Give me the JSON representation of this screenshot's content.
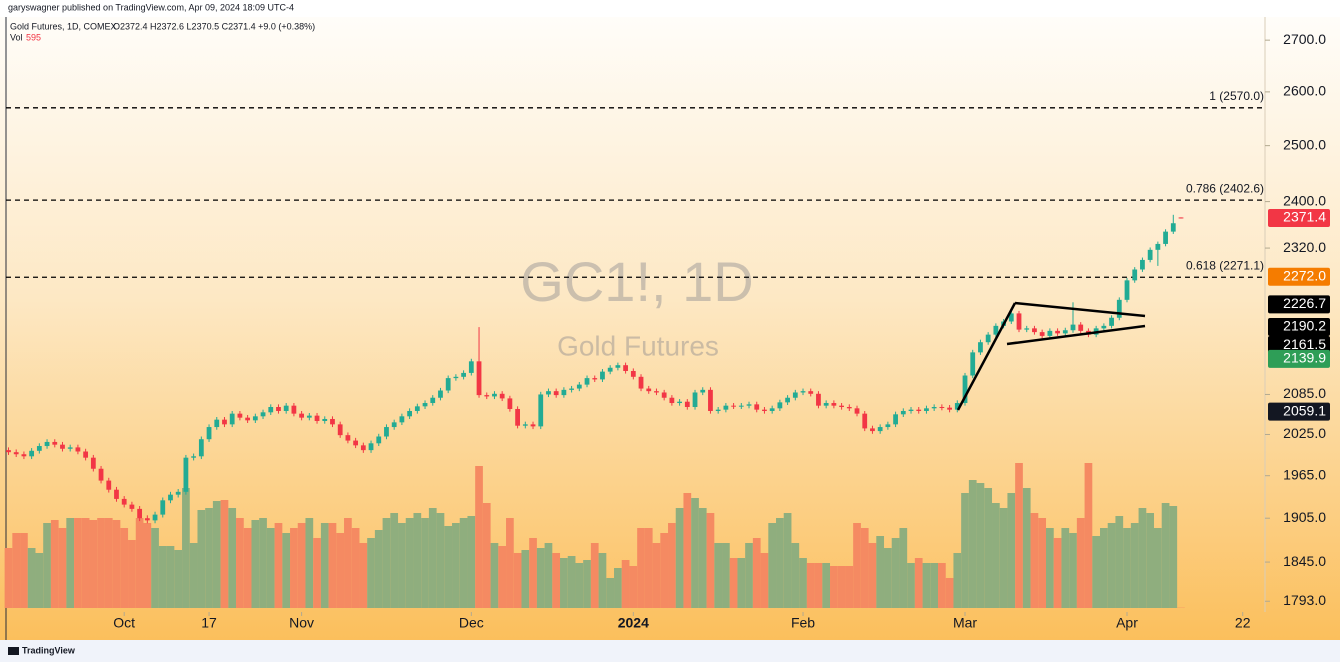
{
  "header": {
    "publisher": "garyswagner published on TradingView.com, Apr 09, 2024 18:09 UTC-4"
  },
  "legend": {
    "symbol": "Gold Futures, 1D, COMEX",
    "ohlc": "O2372.4 H2372.6 L2370.5 C2371.4 +9.0 (+0.38%)",
    "volume_label": "Vol",
    "volume_value": "595"
  },
  "watermark": {
    "symbol": "GC1!, 1D",
    "name": "Gold Futures"
  },
  "footer": {
    "brand": "TradingView"
  },
  "chart_data": {
    "type": "candlestick",
    "log_scale": true,
    "grid": false,
    "up_color": "#22ab94",
    "down_color": "#f23645",
    "volume_up_color": "#8fae7e",
    "volume_down_color": "#f58a62",
    "xlim": [
      -1.1,
      162.5
    ],
    "xticks": [
      {
        "value": 15,
        "label": "Oct"
      },
      {
        "value": 26,
        "label": "17"
      },
      {
        "value": 38,
        "label": "Nov"
      },
      {
        "value": 60,
        "label": "Dec"
      },
      {
        "value": 81,
        "label": "2024"
      },
      {
        "value": 103,
        "label": "Feb"
      },
      {
        "value": 124,
        "label": "Mar"
      },
      {
        "value": 145,
        "label": "Apr"
      },
      {
        "value": 160,
        "label": "22"
      }
    ],
    "ylim": [
      1779,
      2746
    ],
    "yticks": [
      {
        "value": 1793,
        "label": "1793.0"
      },
      {
        "value": 1845,
        "label": "1845.0"
      },
      {
        "value": 1905,
        "label": "1905.0"
      },
      {
        "value": 1965,
        "label": "1965.0"
      },
      {
        "value": 2025,
        "label": "2025.0"
      },
      {
        "value": 2085,
        "label": "2085.0"
      },
      {
        "value": 2320,
        "label": "2320.0"
      },
      {
        "value": 2400,
        "label": "2400.0"
      },
      {
        "value": 2500,
        "label": "2500.0"
      },
      {
        "value": 2600,
        "label": "2600.0"
      },
      {
        "value": 2700,
        "label": "2700.0"
      }
    ],
    "vlim": [
      0,
      400000
    ],
    "open": [
      2002,
      1999,
      1996,
      1993,
      2001,
      2008,
      2014,
      2010,
      2004,
      2006,
      2000,
      1991,
      1975,
      1958,
      1945,
      1932,
      1924,
      1918,
      1905,
      1902,
      1910,
      1930,
      1938,
      1942,
      1991,
      1993,
      2018,
      2036,
      2047,
      2040,
      2056,
      2050,
      2046,
      2052,
      2058,
      2066,
      2060,
      2068,
      2056,
      2050,
      2053,
      2045,
      2048,
      2040,
      2024,
      2016,
      2009,
      2002,
      2012,
      2022,
      2036,
      2043,
      2052,
      2060,
      2067,
      2072,
      2080,
      2091,
      2110,
      2112,
      2118,
      2136,
      2084,
      2082,
      2086,
      2079,
      2063,
      2038,
      2040,
      2037,
      2085,
      2090,
      2084,
      2092,
      2094,
      2100,
      2110,
      2108,
      2120,
      2126,
      2130,
      2121,
      2112,
      2094,
      2090,
      2088,
      2080,
      2072,
      2074,
      2066,
      2088,
      2092,
      2060,
      2062,
      2068,
      2067,
      2068,
      2070,
      2062,
      2060,
      2064,
      2073,
      2080,
      2088,
      2090,
      2086,
      2068,
      2072,
      2068,
      2066,
      2064,
      2056,
      2034,
      2030,
      2036,
      2040,
      2055,
      2060,
      2062,
      2060,
      2064,
      2066,
      2065,
      2062,
      2072,
      2114,
      2150,
      2166,
      2178,
      2192,
      2199,
      2212,
      2186,
      2188,
      2182,
      2176,
      2184,
      2180,
      2185,
      2194,
      2184,
      2178,
      2188,
      2192,
      2205,
      2234,
      2266,
      2284,
      2300,
      2317,
      2327,
      2348,
      2372.4
    ],
    "high": [
      2006,
      2003,
      2000,
      2005,
      2012,
      2018,
      2018,
      2014,
      2010,
      2010,
      2004,
      1995,
      1979,
      1962,
      1949,
      1936,
      1928,
      1922,
      1909,
      1914,
      1934,
      1942,
      1946,
      1995,
      1997,
      2022,
      2040,
      2051,
      2051,
      2060,
      2060,
      2054,
      2056,
      2062,
      2070,
      2070,
      2072,
      2072,
      2060,
      2057,
      2057,
      2052,
      2052,
      2044,
      2028,
      2020,
      2013,
      2016,
      2026,
      2040,
      2047,
      2056,
      2064,
      2071,
      2076,
      2084,
      2095,
      2114,
      2116,
      2122,
      2140,
      2190,
      2088,
      2090,
      2090,
      2083,
      2067,
      2044,
      2044,
      2089,
      2094,
      2094,
      2096,
      2098,
      2104,
      2114,
      2114,
      2124,
      2130,
      2134,
      2134,
      2125,
      2116,
      2098,
      2094,
      2092,
      2084,
      2078,
      2078,
      2092,
      2096,
      2096,
      2066,
      2072,
      2072,
      2072,
      2074,
      2074,
      2066,
      2068,
      2077,
      2084,
      2092,
      2094,
      2094,
      2090,
      2076,
      2076,
      2072,
      2070,
      2068,
      2060,
      2038,
      2040,
      2044,
      2059,
      2064,
      2066,
      2066,
      2068,
      2070,
      2070,
      2069,
      2076,
      2118,
      2154,
      2170,
      2182,
      2196,
      2203,
      2216,
      2216,
      2192,
      2192,
      2186,
      2188,
      2188,
      2189,
      2230,
      2198,
      2188,
      2192,
      2196,
      2209,
      2238,
      2270,
      2288,
      2304,
      2321,
      2331,
      2352,
      2377,
      2372.6
    ],
    "low": [
      1995,
      1992,
      1989,
      1989,
      1997,
      2004,
      2006,
      2000,
      2000,
      1996,
      1987,
      1971,
      1954,
      1941,
      1928,
      1920,
      1914,
      1901,
      1898,
      1898,
      1906,
      1926,
      1934,
      1938,
      1987,
      1989,
      2014,
      2032,
      2036,
      2036,
      2046,
      2042,
      2042,
      2048,
      2054,
      2056,
      2056,
      2052,
      2046,
      2046,
      2041,
      2041,
      2036,
      2020,
      2012,
      2005,
      1998,
      1998,
      2008,
      2018,
      2032,
      2039,
      2048,
      2056,
      2063,
      2068,
      2076,
      2087,
      2106,
      2108,
      2114,
      2080,
      2078,
      2078,
      2075,
      2059,
      2034,
      2034,
      2033,
      2033,
      2081,
      2080,
      2080,
      2088,
      2090,
      2096,
      2104,
      2104,
      2116,
      2122,
      2117,
      2108,
      2090,
      2086,
      2084,
      2076,
      2068,
      2068,
      2062,
      2062,
      2084,
      2056,
      2056,
      2058,
      2063,
      2063,
      2064,
      2058,
      2056,
      2056,
      2060,
      2069,
      2076,
      2084,
      2082,
      2064,
      2064,
      2064,
      2062,
      2060,
      2052,
      2030,
      2026,
      2026,
      2032,
      2036,
      2051,
      2056,
      2056,
      2056,
      2060,
      2061,
      2058,
      2058,
      2068,
      2110,
      2146,
      2162,
      2174,
      2188,
      2195,
      2182,
      2182,
      2178,
      2172,
      2172,
      2176,
      2176,
      2181,
      2180,
      2174,
      2174,
      2184,
      2188,
      2201,
      2230,
      2262,
      2280,
      2296,
      2290,
      2323,
      2344,
      2370.5
    ],
    "close": [
      1999,
      1996,
      1993,
      2001,
      2008,
      2014,
      2010,
      2004,
      2006,
      2000,
      1991,
      1975,
      1958,
      1945,
      1932,
      1924,
      1918,
      1905,
      1902,
      1910,
      1930,
      1938,
      1942,
      1991,
      1993,
      2018,
      2036,
      2047,
      2040,
      2056,
      2050,
      2046,
      2052,
      2058,
      2066,
      2060,
      2068,
      2056,
      2050,
      2053,
      2045,
      2048,
      2040,
      2024,
      2016,
      2009,
      2002,
      2012,
      2022,
      2036,
      2043,
      2052,
      2060,
      2067,
      2072,
      2080,
      2091,
      2110,
      2112,
      2118,
      2136,
      2084,
      2082,
      2086,
      2079,
      2063,
      2038,
      2040,
      2037,
      2085,
      2090,
      2084,
      2092,
      2094,
      2100,
      2110,
      2108,
      2120,
      2126,
      2130,
      2121,
      2112,
      2094,
      2090,
      2088,
      2080,
      2072,
      2074,
      2066,
      2088,
      2092,
      2060,
      2062,
      2068,
      2067,
      2068,
      2070,
      2062,
      2060,
      2064,
      2073,
      2080,
      2088,
      2090,
      2086,
      2068,
      2072,
      2068,
      2066,
      2064,
      2056,
      2034,
      2030,
      2036,
      2040,
      2055,
      2060,
      2062,
      2060,
      2064,
      2066,
      2065,
      2062,
      2072,
      2114,
      2150,
      2166,
      2178,
      2192,
      2199,
      2212,
      2186,
      2188,
      2182,
      2176,
      2184,
      2180,
      2185,
      2194,
      2184,
      2178,
      2188,
      2192,
      2205,
      2234,
      2266,
      2284,
      2300,
      2317,
      2327,
      2348,
      2362.4,
      2371.4
    ],
    "volume": [
      120000,
      150000,
      150000,
      120000,
      110000,
      170000,
      176000,
      160000,
      180000,
      180000,
      180000,
      176000,
      180000,
      180000,
      176000,
      160000,
      136000,
      180000,
      170000,
      160000,
      124000,
      124000,
      116000,
      240000,
      130000,
      196000,
      200000,
      214000,
      216000,
      200000,
      180000,
      160000,
      176000,
      180000,
      160000,
      170000,
      150000,
      160000,
      170000,
      180000,
      140000,
      170000,
      170000,
      150000,
      180000,
      160000,
      130000,
      140000,
      156000,
      180000,
      190000,
      170000,
      180000,
      190000,
      180000,
      200000,
      190000,
      164000,
      170000,
      180000,
      184000,
      284000,
      210000,
      130000,
      124000,
      180000,
      110000,
      116000,
      140000,
      120000,
      130000,
      110000,
      100000,
      104000,
      90000,
      96000,
      130000,
      110000,
      60000,
      80000,
      96000,
      84000,
      160000,
      160000,
      130000,
      150000,
      170000,
      200000,
      230000,
      220000,
      200000,
      190000,
      130000,
      130000,
      100000,
      100000,
      130000,
      140000,
      110000,
      170000,
      180000,
      190000,
      130000,
      100000,
      90000,
      90000,
      90000,
      84000,
      84000,
      84000,
      170000,
      160000,
      130000,
      144000,
      120000,
      140000,
      160000,
      90000,
      100000,
      90000,
      90000,
      90000,
      60000,
      110000,
      230000,
      256000,
      250000,
      240000,
      210000,
      200000,
      230000,
      290000,
      240000,
      190000,
      180000,
      160000,
      140000,
      160000,
      150000,
      180000,
      290000,
      144000,
      160000,
      170000,
      184000,
      160000,
      170000,
      200000,
      190000,
      160000,
      210000,
      204000,
      595
    ],
    "levels": [
      {
        "value": 2570,
        "label": "1 (2570.0)"
      },
      {
        "value": 2402.6,
        "label": "0.786 (2402.6)"
      },
      {
        "value": 2271.1,
        "label": "0.618 (2271.1)"
      }
    ],
    "price_labels": [
      2371.4,
      {
        "value": 2272,
        "label": "2272.0"
      },
      2226.7,
      2190.2,
      2161.5,
      2139.9,
      2059.1
    ],
    "price_label_colors": [
      "#f23645",
      "#f57c00",
      "#000000",
      "#000000",
      "#000000",
      "#2e9e57",
      "#131722"
    ]
  }
}
